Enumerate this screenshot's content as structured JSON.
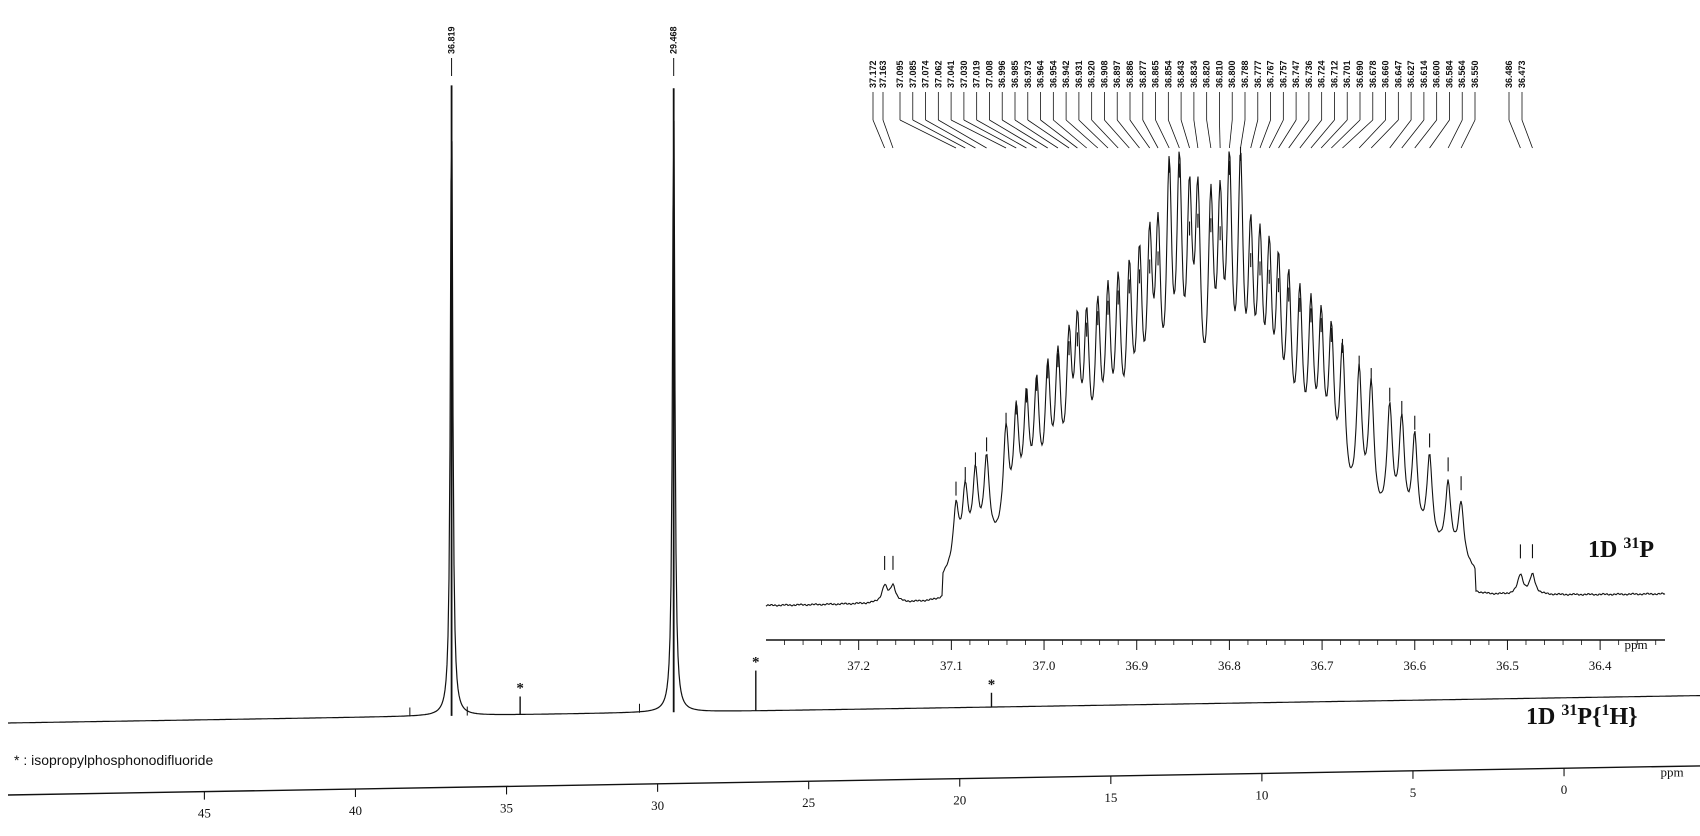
{
  "chart_data": [
    {
      "type": "line",
      "name": "main-spectrum",
      "xlabel": "ppm",
      "xlim": [
        51.5,
        -4.5
      ],
      "x_ticks": [
        45,
        40,
        35,
        30,
        25,
        20,
        15,
        10,
        5,
        0
      ],
      "x_tick_labels": [
        "45",
        "40",
        "35",
        "30",
        "25",
        "20",
        "15",
        "10",
        "5",
        "0"
      ],
      "peaks": [
        {
          "ppm": 36.819,
          "label": "36.819",
          "height": 0.97
        },
        {
          "ppm": 29.468,
          "label": "29.468",
          "height": 0.96
        }
      ],
      "impurity_peaks": [
        {
          "ppm": 34.55,
          "height": 0.028,
          "marker": "*"
        },
        {
          "ppm": 26.75,
          "height": 0.062,
          "marker": "*"
        },
        {
          "ppm": 18.95,
          "height": 0.022,
          "marker": "*"
        }
      ],
      "spectrum_label": {
        "base": "1D ",
        "sup1": "31",
        "mid": "P{",
        "sup2": "1",
        "end": "H}"
      },
      "footnote": "* : isopropylphosphonodifluoride"
    },
    {
      "type": "line",
      "name": "inset-spectrum",
      "xlabel": "ppm",
      "xlim": [
        37.3,
        36.33
      ],
      "x_ticks": [
        37.2,
        37.1,
        37.0,
        36.9,
        36.8,
        36.7,
        36.6,
        36.5,
        36.4
      ],
      "x_tick_labels": [
        "37.2",
        "37.1",
        "37.0",
        "36.9",
        "36.8",
        "36.7",
        "36.6",
        "36.5",
        "36.4"
      ],
      "peak_labels": [
        "37.172",
        "37.163",
        "37.095",
        "37.085",
        "37.074",
        "37.062",
        "37.041",
        "37.030",
        "37.019",
        "37.008",
        "36.996",
        "36.985",
        "36.973",
        "36.964",
        "36.954",
        "36.942",
        "36.931",
        "36.920",
        "36.908",
        "36.897",
        "36.886",
        "36.877",
        "36.865",
        "36.854",
        "36.843",
        "36.834",
        "36.820",
        "36.810",
        "36.800",
        "36.788",
        "36.777",
        "36.767",
        "36.757",
        "36.747",
        "36.736",
        "36.724",
        "36.712",
        "36.701",
        "36.690",
        "36.678",
        "36.660",
        "36.647",
        "36.627",
        "36.614",
        "36.600",
        "36.584",
        "36.564",
        "36.550",
        "36.486",
        "36.473"
      ],
      "spectrum_label": {
        "base": "1D ",
        "sup1": "31",
        "end": "P"
      }
    }
  ]
}
